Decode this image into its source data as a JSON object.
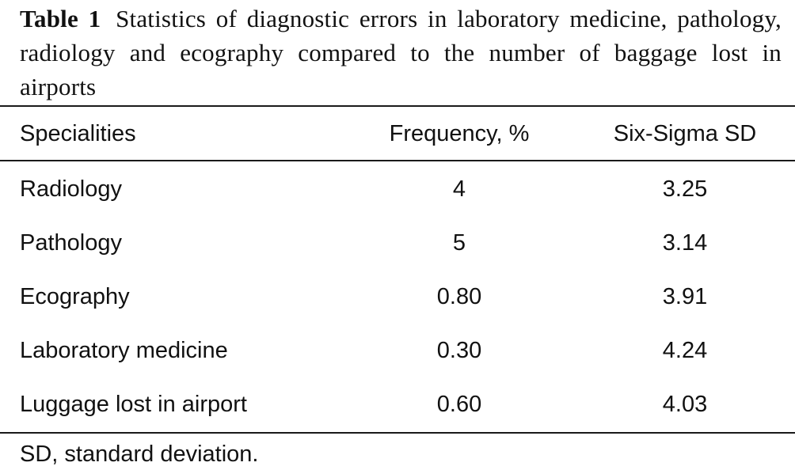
{
  "caption": {
    "label": "Table 1",
    "text": "Statistics of diagnostic errors in laboratory medicine, pathology, radiology and ecography compared to the number of baggage lost in airports"
  },
  "table": {
    "headers": [
      "Specialities",
      "Frequency, %",
      "Six-Sigma SD"
    ],
    "rows": [
      [
        "Radiology",
        "4",
        "3.25"
      ],
      [
        "Pathology",
        "5",
        "3.14"
      ],
      [
        "Ecography",
        "0.80",
        "3.91"
      ],
      [
        "Laboratory medicine",
        "0.30",
        "4.24"
      ],
      [
        "Luggage lost in airport",
        "0.60",
        "4.03"
      ]
    ]
  },
  "footnote": "SD, standard deviation."
}
